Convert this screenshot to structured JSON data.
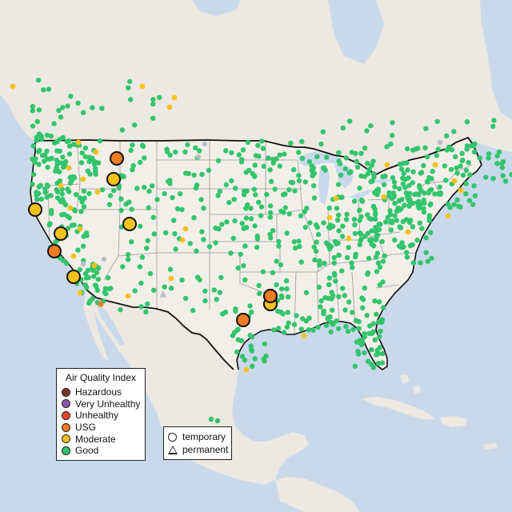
{
  "colors": {
    "ocean": "#c9d9ea",
    "land_us": "#f2efe9",
    "land_other": "#ece8e2",
    "state_line": "#9a9a9a",
    "border_line": "#111111",
    "hazardous": "#7b3525",
    "very_unhealthy": "#8e57a8",
    "unhealthy": "#e8452c",
    "usg": "#ef7b22",
    "moderate": "#f4c21b",
    "good": "#33c46e",
    "inactive": "#b9bfc6"
  },
  "legend": {
    "title": "Air Quality Index",
    "items": [
      {
        "label": "Hazardous",
        "color": "#7b3525"
      },
      {
        "label": "Very Unhealthy",
        "color": "#8e57a8"
      },
      {
        "label": "Unhealthy",
        "color": "#e8452c"
      },
      {
        "label": "USG",
        "color": "#ef7b22"
      },
      {
        "label": "Moderate",
        "color": "#f4c21b"
      },
      {
        "label": "Good",
        "color": "#33c46e"
      }
    ]
  },
  "shape_legend": {
    "items": [
      {
        "label": "temporary",
        "shape": "circle"
      },
      {
        "label": "permanent",
        "shape": "triangle"
      }
    ]
  }
}
